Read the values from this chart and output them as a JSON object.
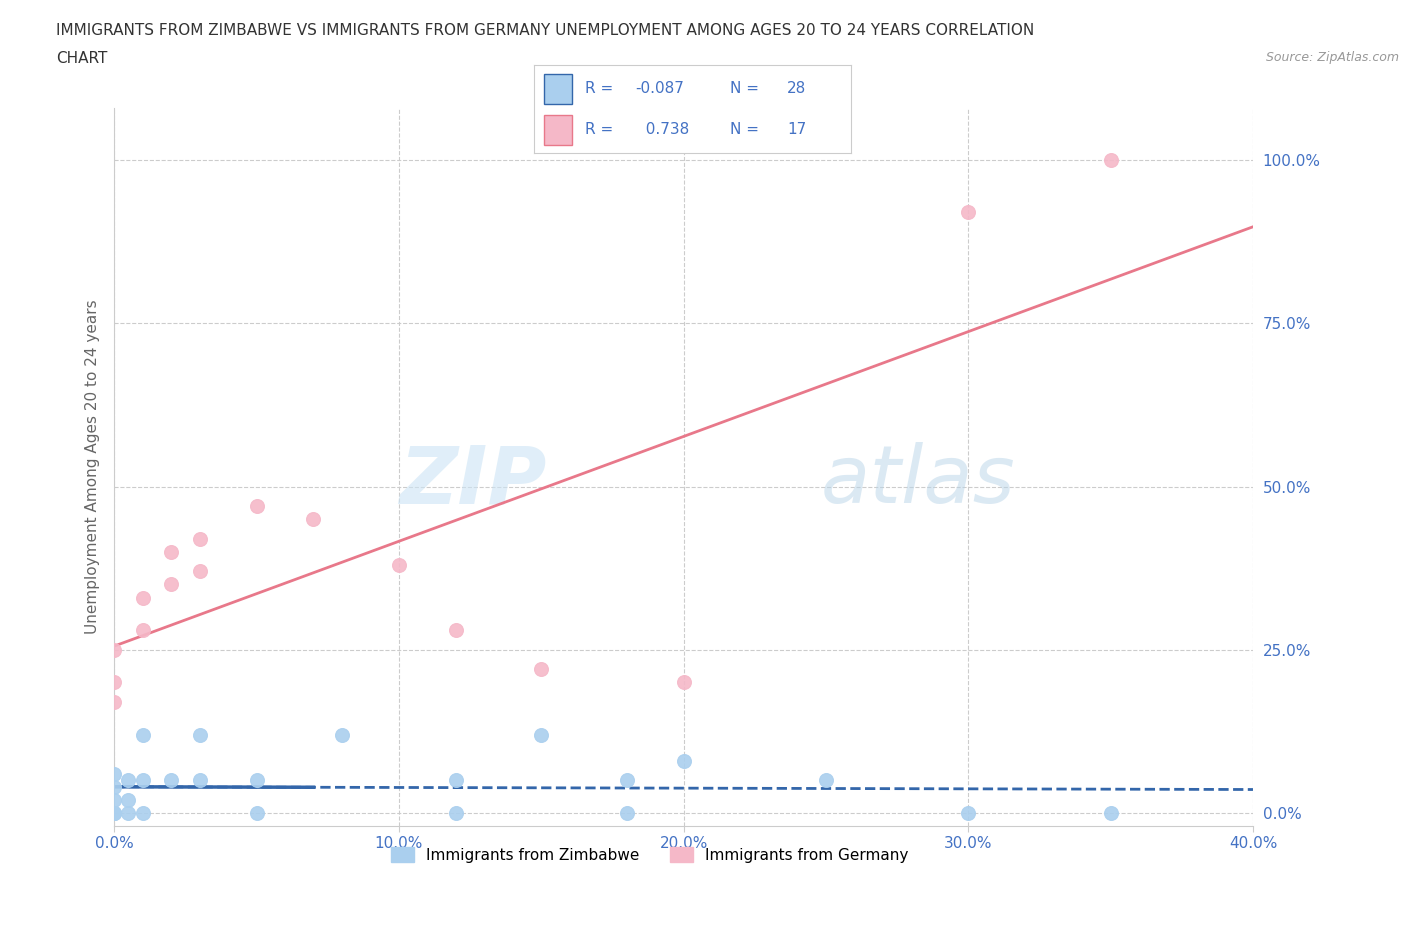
{
  "title_line1": "IMMIGRANTS FROM ZIMBABWE VS IMMIGRANTS FROM GERMANY UNEMPLOYMENT AMONG AGES 20 TO 24 YEARS CORRELATION",
  "title_line2": "CHART",
  "source": "Source: ZipAtlas.com",
  "ylabel": "Unemployment Among Ages 20 to 24 years",
  "background_color": "#ffffff",
  "watermark_text": "ZIP",
  "watermark_text2": "atlas",
  "legend_label1": "Immigrants from Zimbabwe",
  "legend_label2": "Immigrants from Germany",
  "R1": -0.087,
  "N1": 28,
  "R2": 0.738,
  "N2": 17,
  "color_zimbabwe": "#aacfee",
  "color_germany": "#f5b8c8",
  "color_trendline_zimbabwe": "#3366aa",
  "color_trendline_germany": "#e8788a",
  "xlim": [
    0.0,
    0.4
  ],
  "ylim": [
    -0.02,
    1.08
  ],
  "xticks": [
    0.0,
    0.1,
    0.2,
    0.3,
    0.4
  ],
  "xtick_labels": [
    "0.0%",
    "10.0%",
    "20.0%",
    "30.0%",
    "40.0%"
  ],
  "ytick_positions": [
    0.0,
    0.25,
    0.5,
    0.75,
    1.0
  ],
  "ytick_labels": [
    "0.0%",
    "25.0%",
    "50.0%",
    "75.0%",
    "100.0%"
  ],
  "zimbabwe_x": [
    0.0,
    0.0,
    0.0,
    0.0,
    0.0,
    0.0,
    0.0,
    0.005,
    0.005,
    0.005,
    0.01,
    0.01,
    0.01,
    0.02,
    0.03,
    0.03,
    0.05,
    0.05,
    0.08,
    0.12,
    0.12,
    0.15,
    0.18,
    0.18,
    0.2,
    0.25,
    0.3,
    0.35
  ],
  "zimbabwe_y": [
    0.0,
    0.0,
    0.0,
    0.0,
    0.02,
    0.04,
    0.06,
    0.0,
    0.02,
    0.05,
    0.0,
    0.05,
    0.12,
    0.05,
    0.05,
    0.12,
    0.0,
    0.05,
    0.12,
    0.0,
    0.05,
    0.12,
    0.0,
    0.05,
    0.08,
    0.05,
    0.0,
    0.0
  ],
  "germany_x": [
    0.0,
    0.0,
    0.0,
    0.01,
    0.01,
    0.02,
    0.02,
    0.03,
    0.03,
    0.05,
    0.07,
    0.1,
    0.12,
    0.15,
    0.2,
    0.3,
    0.35
  ],
  "germany_y": [
    0.17,
    0.2,
    0.25,
    0.28,
    0.33,
    0.35,
    0.4,
    0.37,
    0.42,
    0.47,
    0.45,
    0.38,
    0.28,
    0.22,
    0.2,
    0.92,
    1.0
  ],
  "title_fontsize": 11,
  "axis_label_fontsize": 11,
  "tick_fontsize": 11,
  "legend_fontsize": 11,
  "dot_size": 100
}
